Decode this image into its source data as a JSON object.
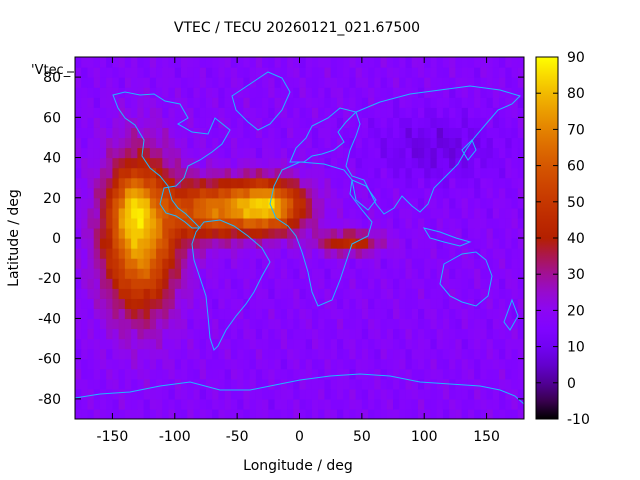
{
  "chart_data": {
    "type": "heatmap",
    "title": "VTEC / TECU 20260121_021.67500",
    "xlabel": "Longitude / deg",
    "ylabel": "Latitude / deg",
    "legend_entry": "'Vtec_",
    "xlim": [
      -180,
      180
    ],
    "ylim": [
      -90,
      90
    ],
    "x_ticks": [
      -150,
      -100,
      -50,
      0,
      50,
      100,
      150
    ],
    "y_ticks": [
      -80,
      -60,
      -40,
      -20,
      0,
      20,
      40,
      60,
      80
    ],
    "colorbar": {
      "range": [
        -10,
        90
      ],
      "ticks": [
        -10,
        0,
        10,
        20,
        30,
        40,
        50,
        60,
        70,
        80,
        90
      ],
      "palette": "gnuplot rgbformulae 7,5,15"
    },
    "grid": false,
    "value_field": {
      "background": 17,
      "features": [
        {
          "lon": -128,
          "lat": 2,
          "peak": 60,
          "sig_lon": 20,
          "sig_lat": 26,
          "note": "equatorial Pacific anomaly"
        },
        {
          "lon": -135,
          "lat": 16,
          "peak": 18,
          "sig_lon": 10,
          "sig_lat": 10,
          "note": "local maximum near 20N"
        },
        {
          "lon": -28,
          "lat": 16,
          "peak": 66,
          "sig_lon": 22,
          "sig_lat": 9,
          "note": "Atlantic / West Africa peak"
        },
        {
          "lon": -75,
          "lat": 14,
          "peak": 40,
          "sig_lon": 20,
          "sig_lat": 10,
          "note": "Caribbean band"
        },
        {
          "lon": 40,
          "lat": -2,
          "peak": 28,
          "sig_lon": 18,
          "sig_lat": 4,
          "note": "Indian Ocean tongue"
        },
        {
          "lon": 110,
          "lat": 45,
          "peak": -9,
          "sig_lon": 35,
          "sig_lat": 12,
          "note": "low over Asia"
        }
      ]
    }
  }
}
